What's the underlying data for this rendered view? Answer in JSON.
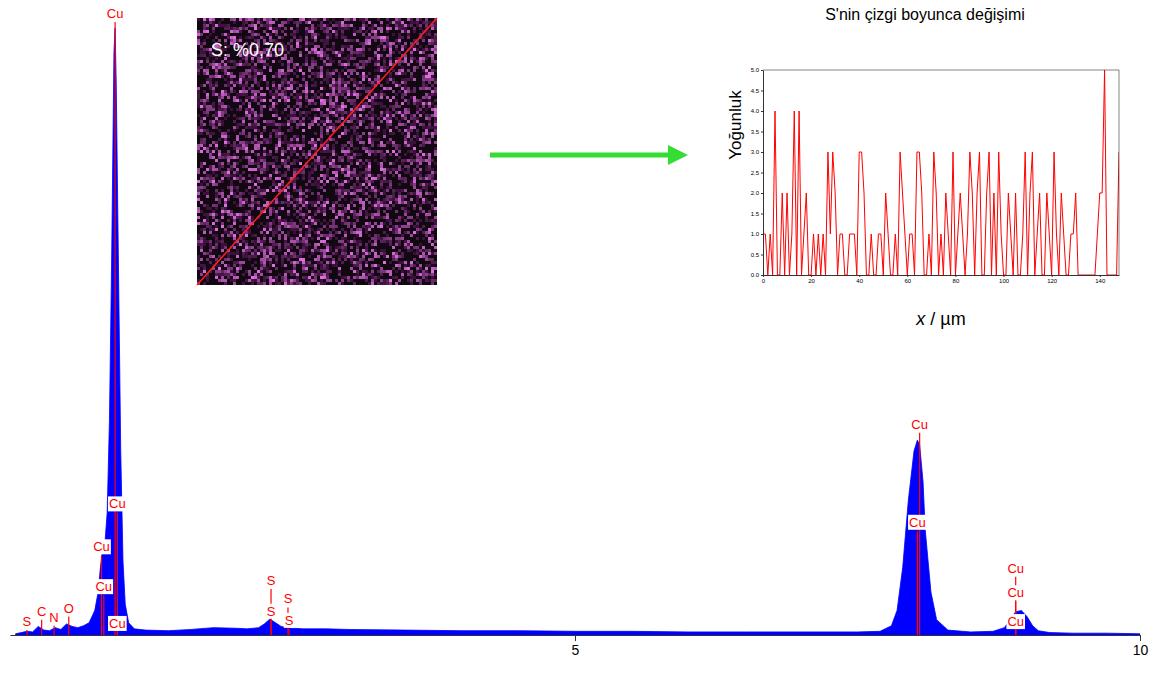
{
  "chart_data": [
    {
      "type": "area",
      "x": [
        0.05,
        0.1,
        0.15,
        0.2,
        0.25,
        0.3,
        0.35,
        0.4,
        0.45,
        0.5,
        0.55,
        0.6,
        0.65,
        0.7,
        0.75,
        0.78,
        0.8,
        0.82,
        0.84,
        0.86,
        0.88,
        0.9,
        0.92,
        0.93,
        0.94,
        0.96,
        0.98,
        1.0,
        1.02,
        1.05,
        1.1,
        1.2,
        1.4,
        1.6,
        1.8,
        2.0,
        2.1,
        2.2,
        2.25,
        2.3,
        2.35,
        2.4,
        2.45,
        2.5,
        2.6,
        2.8,
        3.0,
        3.5,
        4.0,
        4.5,
        5.0,
        5.5,
        6.0,
        6.5,
        7.0,
        7.5,
        7.7,
        7.8,
        7.85,
        7.9,
        7.95,
        8.0,
        8.03,
        8.05,
        8.08,
        8.1,
        8.15,
        8.2,
        8.3,
        8.5,
        8.7,
        8.8,
        8.85,
        8.9,
        8.95,
        9.0,
        9.05,
        9.1,
        9.2,
        9.4,
        9.7,
        10.0
      ],
      "values": [
        2,
        4,
        6,
        5,
        14,
        8,
        7,
        12,
        9,
        18,
        14,
        12,
        15,
        20,
        40,
        70,
        110,
        140,
        150,
        200,
        350,
        620,
        950,
        990,
        900,
        600,
        300,
        120,
        50,
        20,
        10,
        8,
        7,
        9,
        12,
        11,
        10,
        12,
        18,
        26,
        20,
        14,
        12,
        11,
        10,
        10,
        9,
        8,
        7,
        7,
        6,
        6,
        5,
        5,
        5,
        5,
        6,
        15,
        40,
        110,
        220,
        300,
        318,
        310,
        250,
        170,
        70,
        25,
        8,
        5,
        6,
        12,
        25,
        38,
        40,
        30,
        15,
        7,
        4,
        3,
        3,
        2
      ],
      "color": "#0000ff",
      "xlim": [
        0,
        10
      ],
      "xticks": [
        5,
        10
      ],
      "ylim": [
        0,
        1000
      ],
      "tick_labels": "x",
      "annotations": [
        {
          "text": "S",
          "x": 0.15,
          "y": 8
        },
        {
          "text": "C",
          "x": 0.28,
          "y": 25
        },
        {
          "text": "N",
          "x": 0.39,
          "y": 15
        },
        {
          "text": "O",
          "x": 0.52,
          "y": 30
        },
        {
          "text": "Cu",
          "x": 0.81,
          "y": 130
        },
        {
          "text": "Cu",
          "x": 0.83,
          "y": 65
        },
        {
          "text": "Cu",
          "x": 0.93,
          "y": 1000
        },
        {
          "text": "Cu",
          "x": 0.95,
          "y": 200
        },
        {
          "text": "Cu",
          "x": 0.95,
          "y": 5
        },
        {
          "text": "S",
          "x": 2.31,
          "y": 75
        },
        {
          "text": "S",
          "x": 2.31,
          "y": 25
        },
        {
          "text": "S",
          "x": 2.46,
          "y": 45
        },
        {
          "text": "S",
          "x": 2.47,
          "y": 10
        },
        {
          "text": "Cu",
          "x": 8.05,
          "y": 330
        },
        {
          "text": "Cu",
          "x": 8.03,
          "y": 170
        },
        {
          "text": "Cu",
          "x": 8.9,
          "y": 95
        },
        {
          "text": "Cu",
          "x": 8.9,
          "y": 55
        },
        {
          "text": "Cu",
          "x": 8.9,
          "y": 8
        }
      ]
    },
    {
      "type": "line",
      "title": "S'nin çizgi boyunca değişimi",
      "x_label": "x / µm",
      "y_label": "Yoğunluk",
      "x": [
        0,
        1,
        2,
        3,
        4,
        5,
        6,
        7,
        8,
        9,
        10,
        11,
        12,
        13,
        14,
        15,
        16,
        17,
        18,
        19,
        20,
        21,
        22,
        23,
        24,
        25,
        26,
        27,
        28,
        29,
        30,
        31,
        32,
        33,
        34,
        35,
        36,
        37,
        38,
        39,
        40,
        41,
        42,
        43,
        44,
        45,
        46,
        47,
        48,
        49,
        50,
        51,
        52,
        53,
        54,
        55,
        56,
        57,
        58,
        59,
        60,
        61,
        62,
        63,
        64,
        65,
        66,
        67,
        68,
        69,
        70,
        71,
        72,
        73,
        74,
        75,
        76,
        77,
        78,
        79,
        80,
        81,
        82,
        83,
        84,
        85,
        86,
        87,
        88,
        89,
        90,
        91,
        92,
        93,
        94,
        95,
        96,
        97,
        98,
        99,
        100,
        101,
        102,
        103,
        104,
        105,
        106,
        107,
        108,
        109,
        110,
        111,
        112,
        113,
        114,
        115,
        116,
        117,
        118,
        119,
        120,
        121,
        122,
        123,
        124,
        125,
        126,
        127,
        128,
        129,
        130,
        131,
        132,
        133,
        134,
        135,
        136,
        137,
        138,
        139,
        140,
        141,
        142,
        143,
        144,
        145,
        146,
        147,
        148
      ],
      "values": [
        1,
        1,
        0,
        1,
        0,
        4,
        0,
        0,
        2,
        0,
        2,
        0,
        1,
        4,
        0,
        4,
        0,
        1,
        2,
        0,
        0,
        1,
        0,
        1,
        0,
        1,
        0,
        3,
        1,
        3,
        2,
        0,
        1,
        1,
        0,
        0,
        1,
        1,
        1,
        0,
        3,
        3,
        2,
        0,
        0,
        1,
        0,
        0,
        1,
        1,
        0,
        2,
        1,
        0,
        0,
        1,
        0,
        3,
        2,
        1,
        0,
        1,
        1,
        0,
        3,
        3,
        2,
        0,
        0,
        1,
        0,
        3,
        2,
        0,
        1,
        0,
        2,
        1,
        0,
        3,
        0,
        1,
        2,
        1,
        0,
        1,
        3,
        2,
        0,
        2,
        3,
        0,
        0,
        2,
        3,
        0,
        2,
        0,
        3,
        1,
        0,
        0,
        2,
        1,
        0,
        2,
        0,
        0,
        1,
        3,
        0,
        2,
        3,
        0,
        1,
        2,
        0,
        0,
        2,
        1,
        0,
        3,
        1,
        0,
        2,
        1,
        0,
        0,
        1,
        1,
        2,
        0,
        0,
        0,
        0,
        0,
        0,
        0,
        0,
        1,
        2,
        2,
        5,
        0,
        0,
        0,
        0,
        0,
        3
      ],
      "color": "#ff0000",
      "xlim": [
        0,
        148
      ],
      "xticks": [
        0,
        20,
        40,
        60,
        80,
        100,
        120,
        140
      ],
      "ylim": [
        0,
        5
      ],
      "yticks": [
        {
          "value": 0,
          "label": "0.0"
        },
        0.5,
        {
          "value": 1,
          "label": "1.0"
        },
        1.5,
        {
          "value": 2,
          "label": "2.0"
        },
        2.5,
        {
          "value": 3,
          "label": "3.0"
        },
        3.5,
        {
          "value": 4,
          "label": "4.0"
        },
        4.5,
        {
          "value": 5,
          "label": "5.0"
        }
      ]
    }
  ],
  "map": {
    "label": "S: %0,70"
  }
}
